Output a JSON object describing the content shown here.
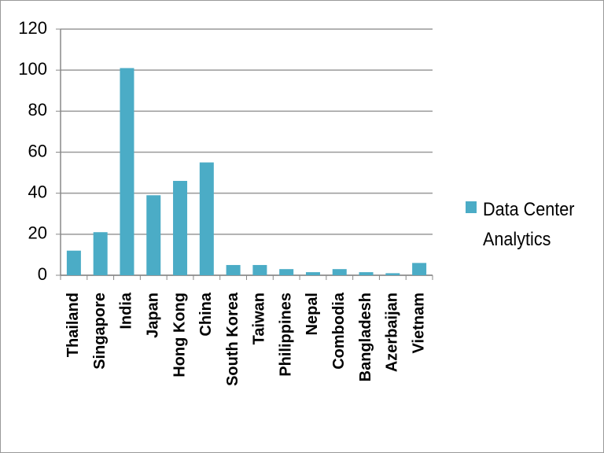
{
  "chart_data": {
    "type": "bar",
    "categories": [
      "Thailand",
      "Singapore",
      "India",
      "Japan",
      "Hong Kong",
      "China",
      "South Korea",
      "Taiwan",
      "Philippines",
      "Nepal",
      "Combodia",
      "Bangladesh",
      "Azerbaijan",
      "Vietnam"
    ],
    "series": [
      {
        "name": "Data Center Analytics",
        "color": "#4bacc6",
        "values": [
          12,
          21,
          101,
          39,
          46,
          55,
          5,
          5,
          3,
          1.5,
          3,
          1.5,
          1,
          6
        ]
      }
    ],
    "ylim": [
      0,
      120
    ],
    "yticks": [
      0,
      20,
      40,
      60,
      80,
      100,
      120
    ],
    "grid": true,
    "legend": "right"
  }
}
